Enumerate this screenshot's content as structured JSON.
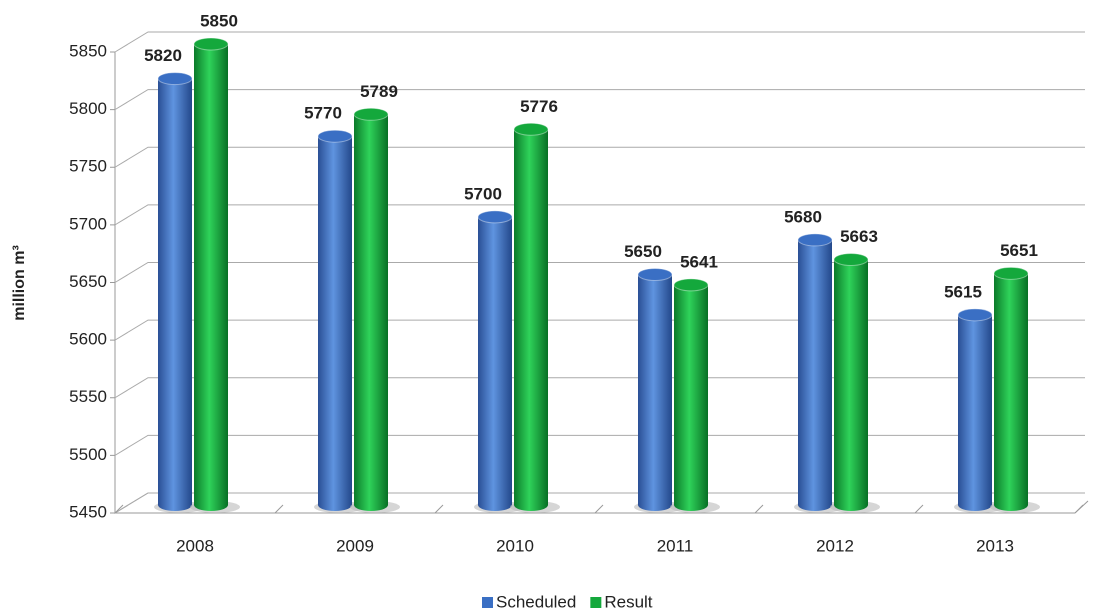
{
  "chart_data": {
    "type": "bar",
    "y_label": "million m³",
    "categories": [
      "2008",
      "2009",
      "2010",
      "2011",
      "2012",
      "2013"
    ],
    "series": [
      {
        "name": "Scheduled",
        "color": "#3a6fc4",
        "label_color": "#1f6fbf",
        "values": [
          5820,
          5770,
          5700,
          5650,
          5680,
          5615
        ]
      },
      {
        "name": "Result",
        "color": "#14a83c",
        "label_color": "#19ad4b",
        "values": [
          5850,
          5789,
          5776,
          5641,
          5663,
          5651
        ]
      }
    ],
    "ylim": [
      5450,
      5850
    ],
    "yticks": [
      5450,
      5500,
      5550,
      5600,
      5650,
      5700,
      5750,
      5800,
      5850
    ],
    "grid": true,
    "legend": "bottom"
  }
}
